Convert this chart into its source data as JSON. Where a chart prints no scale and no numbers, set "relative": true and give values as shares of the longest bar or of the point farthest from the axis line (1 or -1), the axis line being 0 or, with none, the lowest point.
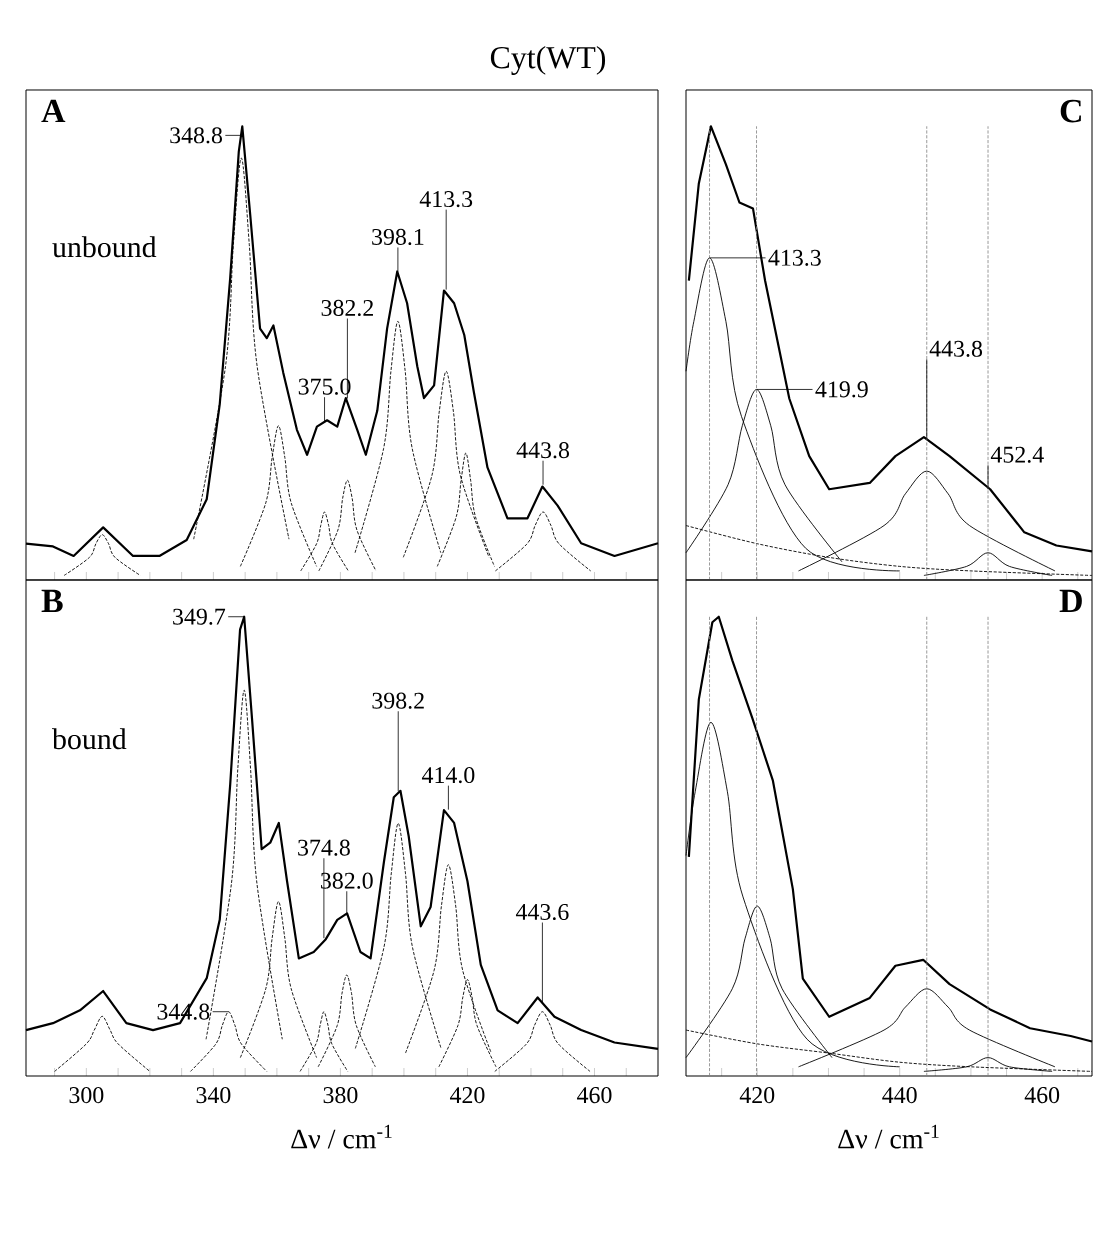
{
  "chart_data": [
    {
      "type": "line",
      "title": "Cyt(WT)",
      "subtitle": "A",
      "relative": true,
      "xlim": [
        281,
        480
      ],
      "xticks": [
        {
          "value": 290,
          "label": null
        },
        300,
        {
          "value": 310,
          "label": null
        },
        {
          "value": 320,
          "label": null
        },
        {
          "value": 330,
          "label": null
        },
        340,
        {
          "value": 350,
          "label": null
        },
        {
          "value": 360,
          "label": null
        },
        {
          "value": 370,
          "label": null
        },
        380,
        {
          "value": 390,
          "label": null
        },
        {
          "value": 400,
          "label": null
        },
        {
          "value": 410,
          "label": null
        },
        420,
        {
          "value": 430,
          "label": null
        },
        {
          "value": 440,
          "label": null
        },
        {
          "value": 450,
          "label": null
        },
        460,
        {
          "value": 470,
          "label": null
        }
      ],
      "tick_labels": false,
      "series": [
        {
          "color": "#000000",
          "line_style": "solid",
          "x": [
            281,
            289.5,
            296,
            305.3,
            314.7,
            323,
            331.6,
            337.9,
            342,
            345.3,
            348,
            349.1,
            351.6,
            354.7,
            356.8,
            358.9,
            362,
            366.3,
            369.5,
            372.6,
            375.8,
            379,
            381.7,
            385.3,
            388,
            391.6,
            394.7,
            397.9,
            401,
            404.2,
            406.3,
            409.5,
            412.6,
            415.8,
            419,
            422,
            426.3,
            432.6,
            438.9,
            443.6,
            448.4,
            455.8,
            466.3,
            480
          ],
          "values": [
            0.08,
            0.074,
            0.053,
            0.116,
            0.053,
            0.053,
            0.088,
            0.178,
            0.387,
            0.666,
            0.944,
            1.0,
            0.805,
            0.554,
            0.533,
            0.561,
            0.457,
            0.331,
            0.276,
            0.338,
            0.352,
            0.338,
            0.401,
            0.331,
            0.276,
            0.373,
            0.554,
            0.68,
            0.61,
            0.471,
            0.401,
            0.429,
            0.638,
            0.61,
            0.54,
            0.415,
            0.248,
            0.136,
            0.136,
            0.206,
            0.164,
            0.081,
            0.053,
            0.081
          ]
        },
        {
          "color": "#000000",
          "line_style": "dashed",
          "x": [
            293,
            301,
            303,
            305,
            307,
            309,
            317
          ],
          "values": [
            0.01,
            0.05,
            0.08,
            0.1,
            0.08,
            0.05,
            0.01
          ]
        },
        {
          "color": "#000000",
          "line_style": "dashed",
          "x": [
            333.8,
            343.8,
            346.3,
            348.8,
            351.3,
            353.8,
            363.8
          ],
          "values": [
            0.09,
            0.47,
            0.74,
            0.93,
            0.74,
            0.47,
            0.09
          ]
        },
        {
          "color": "#000000",
          "line_style": "dashed",
          "x": [
            348.5,
            356.5,
            358.5,
            360.5,
            362.5,
            364.5,
            372.5
          ],
          "values": [
            0.03,
            0.17,
            0.27,
            0.34,
            0.27,
            0.17,
            0.03
          ]
        },
        {
          "color": "#000000",
          "line_style": "dashed",
          "x": [
            367.5,
            372.5,
            373.8,
            375,
            376.3,
            377.5,
            382.5
          ],
          "values": [
            0.02,
            0.08,
            0.12,
            0.15,
            0.12,
            0.08,
            0.02
          ]
        },
        {
          "color": "#000000",
          "line_style": "dashed",
          "x": [
            373.2,
            379.2,
            380.7,
            382.2,
            383.7,
            385.2,
            391.2
          ],
          "values": [
            0.02,
            0.11,
            0.18,
            0.22,
            0.18,
            0.11,
            0.02
          ]
        },
        {
          "color": "#000000",
          "line_style": "dashed",
          "x": [
            384.6,
            393.6,
            395.9,
            398.1,
            400.4,
            402.6,
            411.6
          ],
          "values": [
            0.06,
            0.29,
            0.46,
            0.57,
            0.46,
            0.29,
            0.06
          ]
        },
        {
          "color": "#000000",
          "line_style": "dashed",
          "x": [
            399.8,
            408.8,
            411.1,
            413.3,
            415.6,
            417.8,
            426.8
          ],
          "values": [
            0.05,
            0.23,
            0.37,
            0.46,
            0.37,
            0.23,
            0.05
          ]
        },
        {
          "color": "#000000",
          "line_style": "dashed",
          "x": [
            410.5,
            416.5,
            418,
            419.5,
            421,
            422.5,
            428.5
          ],
          "values": [
            0.03,
            0.14,
            0.22,
            0.28,
            0.22,
            0.14,
            0.03
          ]
        },
        {
          "color": "#000000",
          "line_style": "dashed",
          "x": [
            428.8,
            438.8,
            441.3,
            443.8,
            446.3,
            448.8,
            458.8
          ],
          "values": [
            0.02,
            0.08,
            0.12,
            0.15,
            0.12,
            0.08,
            0.02
          ]
        }
      ],
      "annotations": [
        "unbound",
        {
          "text": "348.8",
          "x": 348.8,
          "y": 0.98
        },
        {
          "text": "375.0",
          "x": 375.0,
          "y": 0.35
        },
        {
          "text": "382.2",
          "x": 382.2,
          "y": 0.4
        },
        {
          "text": "398.1",
          "x": 398.1,
          "y": 0.68
        },
        {
          "text": "413.3",
          "x": 413.3,
          "y": 0.64
        },
        {
          "text": "443.8",
          "x": 443.8,
          "y": 0.21
        }
      ]
    },
    {
      "type": "line",
      "subtitle": "C",
      "relative": true,
      "xlim": [
        410,
        467
      ],
      "xticks": [
        {
          "value": 415,
          "label": null
        },
        420,
        {
          "value": 425,
          "label": null
        },
        {
          "value": 430,
          "label": null
        },
        {
          "value": 435,
          "label": null
        },
        440,
        {
          "value": 445,
          "label": null
        },
        {
          "value": 450,
          "label": null
        },
        {
          "value": 455,
          "label": null
        },
        460,
        {
          "value": 465,
          "label": null
        }
      ],
      "tick_labels": false,
      "series": [
        {
          "color": "#000000",
          "line_style": "solid",
          "x": [
            410.4,
            411.8,
            413.5,
            415.6,
            417.5,
            419.4,
            421.1,
            424.5,
            427.3,
            430.1,
            435.8,
            439.4,
            443.4,
            447,
            452.7,
            457.5,
            462,
            467
          ],
          "values": [
            0.66,
            0.874,
            1.0,
            0.916,
            0.832,
            0.819,
            0.66,
            0.4,
            0.273,
            0.2,
            0.214,
            0.273,
            0.315,
            0.273,
            0.2,
            0.105,
            0.076,
            0.063
          ]
        },
        {
          "color": "#000000",
          "line_style": "solid",
          "x": [
            410,
            411.1,
            413.3,
            415.6,
            417.8,
            426.8,
            440
          ],
          "values": [
            0.46,
            0.57,
            0.71,
            0.57,
            0.36,
            0.07,
            0.02
          ]
        },
        {
          "color": "#000000",
          "line_style": "solid",
          "x": [
            410,
            415.9,
            417.9,
            419.9,
            421.9,
            423.9,
            431.9
          ],
          "values": [
            0.06,
            0.21,
            0.34,
            0.42,
            0.34,
            0.21,
            0.04
          ]
        },
        {
          "color": "#000000",
          "line_style": "solid",
          "x": [
            425.8,
            437.8,
            440.8,
            443.8,
            446.8,
            449.8,
            461.8
          ],
          "values": [
            0.02,
            0.12,
            0.19,
            0.24,
            0.19,
            0.12,
            0.02
          ]
        },
        {
          "color": "#000000",
          "line_style": "solid",
          "x": [
            443.4,
            449.4,
            452.4,
            455.4,
            461.4
          ],
          "values": [
            0.01,
            0.03,
            0.06,
            0.03,
            0.01
          ]
        },
        {
          "color": "#000000",
          "line_style": "dashed",
          "x": [
            410,
            420,
            430,
            440,
            450,
            467
          ],
          "values": [
            0.12,
            0.08,
            0.05,
            0.03,
            0.02,
            0.01
          ]
        }
      ],
      "ref_lines": [
        {
          "axis": "x",
          "value": 413.3,
          "line_style": "dashed"
        },
        {
          "axis": "x",
          "value": 419.9,
          "line_style": "dashed"
        },
        {
          "axis": "x",
          "value": 443.8,
          "line_style": "dashed"
        },
        {
          "axis": "x",
          "value": 452.4,
          "line_style": "dashed"
        }
      ],
      "annotations": [
        {
          "text": "413.3",
          "x": 413.3,
          "y": 0.71
        },
        {
          "text": "419.9",
          "x": 419.9,
          "y": 0.42
        },
        {
          "text": "443.8",
          "x": 443.8,
          "y": 0.31
        },
        {
          "text": "452.4",
          "x": 452.4,
          "y": 0.2
        }
      ]
    },
    {
      "type": "line",
      "subtitle": "B",
      "relative": true,
      "xlim": [
        281,
        480
      ],
      "xlabel": "Δν / cm$^{-1}$",
      "xticks": [
        {
          "value": 290,
          "label": null
        },
        300,
        {
          "value": 310,
          "label": null
        },
        {
          "value": 320,
          "label": null
        },
        {
          "value": 330,
          "label": null
        },
        340,
        {
          "value": 350,
          "label": null
        },
        {
          "value": 360,
          "label": null
        },
        {
          "value": 370,
          "label": null
        },
        380,
        {
          "value": 390,
          "label": null
        },
        {
          "value": 400,
          "label": null
        },
        {
          "value": 410,
          "label": null
        },
        420,
        {
          "value": 430,
          "label": null
        },
        {
          "value": 440,
          "label": null
        },
        {
          "value": 450,
          "label": null
        },
        460,
        {
          "value": 470,
          "label": null
        }
      ],
      "tick_labels": "x",
      "series": [
        {
          "color": "#000000",
          "line_style": "solid",
          "x": [
            281,
            289.5,
            298,
            305.3,
            312.6,
            321,
            329.5,
            337.9,
            342,
            345.3,
            348.4,
            349.7,
            352.2,
            355.2,
            357.9,
            360.6,
            363.2,
            366.9,
            371.6,
            375.4,
            379,
            382.1,
            386.3,
            389.5,
            393.7,
            396.8,
            398.9,
            401.5,
            405.3,
            408.4,
            412.6,
            415.8,
            420,
            424.2,
            429.5,
            435.8,
            442.1,
            447.4,
            455.8,
            466.3,
            480
          ],
          "values": [
            0.1,
            0.115,
            0.143,
            0.185,
            0.115,
            0.1,
            0.115,
            0.213,
            0.34,
            0.635,
            0.972,
            1.0,
            0.775,
            0.494,
            0.508,
            0.551,
            0.424,
            0.256,
            0.27,
            0.298,
            0.34,
            0.354,
            0.27,
            0.256,
            0.466,
            0.607,
            0.621,
            0.522,
            0.326,
            0.368,
            0.579,
            0.551,
            0.424,
            0.242,
            0.143,
            0.115,
            0.171,
            0.129,
            0.1,
            0.073,
            0.059
          ]
        },
        {
          "color": "#000000",
          "line_style": "dashed",
          "x": [
            290,
            300,
            302.5,
            305,
            307.5,
            310,
            320
          ],
          "values": [
            0.01,
            0.07,
            0.1,
            0.13,
            0.1,
            0.07,
            0.01
          ]
        },
        {
          "color": "#000000",
          "line_style": "dashed",
          "x": [
            332.8,
            340.8,
            342.8,
            344.8,
            346.8,
            348.8,
            356.8
          ],
          "values": [
            0.01,
            0.07,
            0.11,
            0.14,
            0.11,
            0.07,
            0.01
          ]
        },
        {
          "color": "#000000",
          "line_style": "dashed",
          "x": [
            337.7,
            345.7,
            347.7,
            349.7,
            351.7,
            353.7,
            361.7
          ],
          "values": [
            0.08,
            0.42,
            0.67,
            0.84,
            0.67,
            0.42,
            0.08
          ]
        },
        {
          "color": "#000000",
          "line_style": "dashed",
          "x": [
            348.5,
            356.5,
            358.5,
            360.5,
            362.5,
            364.5,
            372.5
          ],
          "values": [
            0.04,
            0.19,
            0.3,
            0.38,
            0.3,
            0.19,
            0.04
          ]
        },
        {
          "color": "#000000",
          "line_style": "dashed",
          "x": [
            367.3,
            372.3,
            373.6,
            374.8,
            376.1,
            377.3,
            382.3
          ],
          "values": [
            0.01,
            0.07,
            0.11,
            0.14,
            0.11,
            0.07,
            0.01
          ]
        },
        {
          "color": "#000000",
          "line_style": "dashed",
          "x": [
            373,
            379,
            380.5,
            382,
            383.5,
            385,
            391
          ],
          "values": [
            0.02,
            0.11,
            0.18,
            0.22,
            0.18,
            0.11,
            0.02
          ]
        },
        {
          "color": "#000000",
          "line_style": "dashed",
          "x": [
            384.7,
            393.7,
            396,
            398.2,
            400.5,
            402.7,
            411.7
          ],
          "values": [
            0.06,
            0.28,
            0.44,
            0.55,
            0.44,
            0.28,
            0.06
          ]
        },
        {
          "color": "#000000",
          "line_style": "dashed",
          "x": [
            400.5,
            409.5,
            411.8,
            414,
            416.3,
            418.5,
            427.5
          ],
          "values": [
            0.05,
            0.23,
            0.37,
            0.46,
            0.37,
            0.23,
            0.05
          ]
        },
        {
          "color": "#000000",
          "line_style": "dashed",
          "x": [
            411,
            417,
            418.5,
            420,
            421.5,
            423,
            429
          ],
          "values": [
            0.02,
            0.11,
            0.17,
            0.21,
            0.17,
            0.11,
            0.02
          ]
        },
        {
          "color": "#000000",
          "line_style": "dashed",
          "x": [
            428.6,
            438.6,
            441.1,
            443.6,
            446.1,
            448.6,
            458.6
          ],
          "values": [
            0.01,
            0.07,
            0.11,
            0.14,
            0.11,
            0.07,
            0.01
          ]
        }
      ],
      "annotations": [
        "bound",
        {
          "text": "349.7",
          "x": 349.7,
          "y": 1.0
        },
        {
          "text": "344.8",
          "x": 344.8,
          "y": 0.14
        },
        {
          "text": "374.8",
          "x": 374.8,
          "y": 0.3
        },
        {
          "text": "382.0",
          "x": 382.0,
          "y": 0.35
        },
        {
          "text": "398.2",
          "x": 398.2,
          "y": 0.62
        },
        {
          "text": "414.0",
          "x": 414.0,
          "y": 0.58
        },
        {
          "text": "443.6",
          "x": 443.6,
          "y": 0.16
        }
      ]
    },
    {
      "type": "line",
      "subtitle": "D",
      "relative": true,
      "xlim": [
        410,
        467
      ],
      "xlabel": "Δν / cm$^{-1}$",
      "xticks": [
        {
          "value": 415,
          "label": null
        },
        420,
        {
          "value": 425,
          "label": null
        },
        {
          "value": 430,
          "label": null
        },
        {
          "value": 435,
          "label": null
        },
        440,
        {
          "value": 445,
          "label": null
        },
        {
          "value": 450,
          "label": null
        },
        {
          "value": 455,
          "label": null
        },
        460,
        {
          "value": 465,
          "label": null
        }
      ],
      "tick_labels": "x",
      "series": [
        {
          "color": "#000000",
          "line_style": "solid",
          "x": [
            410.4,
            411.8,
            413.7,
            414.6,
            416.5,
            419.3,
            422.2,
            425,
            426.4,
            430.1,
            435.8,
            439.4,
            443.3,
            447,
            452.7,
            458.3,
            464,
            467
          ],
          "values": [
            0.477,
            0.82,
            0.988,
            1.0,
            0.905,
            0.78,
            0.643,
            0.407,
            0.212,
            0.129,
            0.17,
            0.24,
            0.253,
            0.2,
            0.145,
            0.104,
            0.087,
            0.075
          ]
        },
        {
          "color": "#000000",
          "line_style": "solid",
          "x": [
            410,
            411.3,
            413.5,
            415.8,
            418,
            427,
            440
          ],
          "values": [
            0.48,
            0.62,
            0.77,
            0.62,
            0.39,
            0.08,
            0.02
          ]
        },
        {
          "color": "#000000",
          "line_style": "solid",
          "x": [
            410,
            416.5,
            418.3,
            420,
            421.8,
            423.5,
            430.5
          ],
          "values": [
            0.04,
            0.19,
            0.3,
            0.37,
            0.3,
            0.19,
            0.04
          ]
        },
        {
          "color": "#000000",
          "line_style": "solid",
          "x": [
            425.8,
            437.8,
            440.8,
            443.8,
            446.8,
            449.8,
            461.8
          ],
          "values": [
            0.02,
            0.1,
            0.15,
            0.19,
            0.15,
            0.1,
            0.02
          ]
        },
        {
          "color": "#000000",
          "line_style": "solid",
          "x": [
            443.4,
            449.4,
            452.4,
            455.4,
            461.4
          ],
          "values": [
            0.01,
            0.02,
            0.04,
            0.02,
            0.01
          ]
        },
        {
          "color": "#000000",
          "line_style": "dashed",
          "x": [
            410,
            420,
            430,
            440,
            450,
            467
          ],
          "values": [
            0.1,
            0.07,
            0.05,
            0.03,
            0.02,
            0.01
          ]
        }
      ],
      "ref_lines": [
        {
          "axis": "x",
          "value": 413.3,
          "line_style": "dashed"
        },
        {
          "axis": "x",
          "value": 419.9,
          "line_style": "dashed"
        },
        {
          "axis": "x",
          "value": 443.8,
          "line_style": "dashed"
        },
        {
          "axis": "x",
          "value": 452.4,
          "line_style": "dashed"
        }
      ]
    }
  ]
}
